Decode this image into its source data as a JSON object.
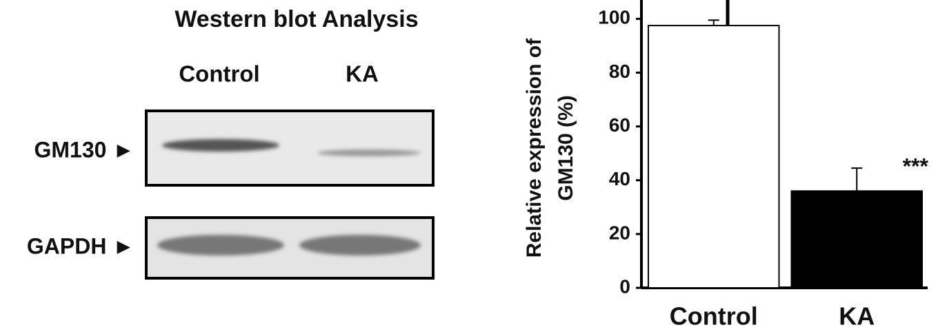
{
  "blot": {
    "title": "Western blot Analysis",
    "lanes": [
      "Control",
      "KA"
    ],
    "bands": [
      "GM130 ►",
      "GAPDH ►"
    ]
  },
  "chart_data": {
    "type": "bar",
    "ylabel": [
      "Relative expression of",
      "GM130 (%)"
    ],
    "categories": [
      "Control",
      "KA"
    ],
    "values": [
      97.5,
      36
    ],
    "errors": [
      2,
      8.5
    ],
    "colors": [
      "#ffffff",
      "#000000"
    ],
    "annotation": "***",
    "ylim": [
      0,
      107
    ],
    "yticks": [
      0,
      20,
      40,
      60,
      80,
      100
    ]
  }
}
